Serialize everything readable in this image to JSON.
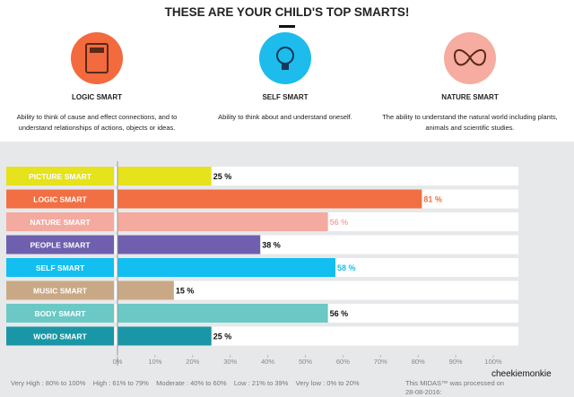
{
  "header": {
    "title": "THESE ARE YOUR CHILD'S TOP SMARTS!"
  },
  "top_smarts": [
    {
      "name": "LOGIC SMART",
      "description": "Ability to think of cause and effect connections, and to understand relationships of actions, objects or ideas."
    },
    {
      "name": "SELF SMART",
      "description": "Ability to think about and understand oneself."
    },
    {
      "name": "NATURE SMART",
      "description": "The ability to understand the natural world including plants, animals and scientific studies."
    }
  ],
  "chart_data": {
    "type": "bar",
    "categories": [
      "PICTURE SMART",
      "LOGIC SMART",
      "NATURE SMART",
      "PEOPLE SMART",
      "SELF SMART",
      "MUSIC SMART",
      "BODY SMART",
      "WORD SMART"
    ],
    "values": [
      25,
      81,
      56,
      38,
      58,
      15,
      56,
      25
    ],
    "value_labels": [
      "25 %",
      "81 %",
      "56 %",
      "38 %",
      "58 %",
      "15 %",
      "56 %",
      "25 %"
    ],
    "colors": [
      "#e6e21c",
      "#f26f43",
      "#f5aaa0",
      "#6f5fae",
      "#12bff0",
      "#c9a985",
      "#6cc8c4",
      "#1a97a7"
    ],
    "value_label_colors": [
      "#111111",
      "#f26f43",
      "#f5aaa0",
      "#111111",
      "#12bff0",
      "#111111",
      "#111111",
      "#111111"
    ],
    "xlim": [
      0,
      100
    ],
    "xticks": [
      {
        "value": 0,
        "label": "0%"
      },
      {
        "value": 10,
        "label": "10%"
      },
      {
        "value": 20,
        "label": "20%"
      },
      {
        "value": 30,
        "label": "30%"
      },
      {
        "value": 40,
        "label": "40%"
      },
      {
        "value": 50,
        "label": "50%"
      },
      {
        "value": 60,
        "label": "60%"
      },
      {
        "value": 70,
        "label": "70%"
      },
      {
        "value": 80,
        "label": "80%"
      },
      {
        "value": 90,
        "label": "90%"
      },
      {
        "value": 100,
        "label": "100%"
      }
    ]
  },
  "footer": {
    "legend": "Very High : 80% to 100%    High : 61% to 79%    Moderate : 40% to 60%    Low : 21% to 39%    Very low : 0% to 20%",
    "processed": "This MIDAS™ was processed on 28-08-2016:",
    "watermark": "cheekiemonkie"
  }
}
